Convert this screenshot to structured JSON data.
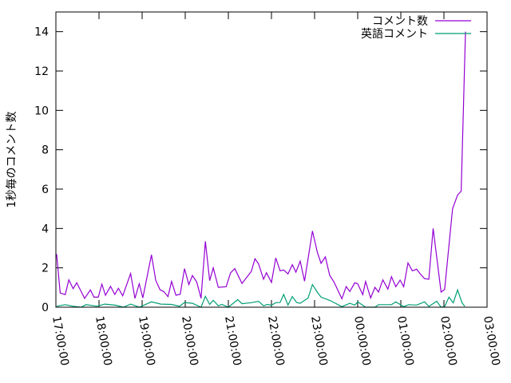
{
  "chart_data": {
    "type": "line",
    "title": "",
    "xlabel": "",
    "ylabel": "1秒毎のコメント数",
    "xlim": [
      "17:00:00",
      "03:00:00"
    ],
    "ylim": [
      0,
      15
    ],
    "x_ticks": [
      "17:00:00",
      "18:00:00",
      "19:00:00",
      "20:00:00",
      "21:00:00",
      "22:00:00",
      "23:00:00",
      "00:00:00",
      "01:00:00",
      "02:00:00",
      "03:00:00"
    ],
    "y_ticks": [
      0,
      2,
      4,
      6,
      8,
      10,
      12,
      14
    ],
    "grid": false,
    "legend_position": "top-right",
    "series": [
      {
        "name": "コメント数",
        "color": "#9400d3",
        "points": [
          [
            "17:01",
            2.7
          ],
          [
            "17:06",
            0.72
          ],
          [
            "17:13",
            0.64
          ],
          [
            "17:18",
            1.39
          ],
          [
            "17:24",
            0.94
          ],
          [
            "17:29",
            1.24
          ],
          [
            "17:35",
            0.81
          ],
          [
            "17:40",
            0.45
          ],
          [
            "17:48",
            0.88
          ],
          [
            "17:53",
            0.51
          ],
          [
            "17:59",
            0.51
          ],
          [
            "18:04",
            1.17
          ],
          [
            "18:09",
            0.61
          ],
          [
            "18:16",
            1.06
          ],
          [
            "18:22",
            0.65
          ],
          [
            "18:27",
            0.96
          ],
          [
            "18:33",
            0.58
          ],
          [
            "18:44",
            1.71
          ],
          [
            "18:50",
            0.45
          ],
          [
            "18:56",
            1.19
          ],
          [
            "19:01",
            0.47
          ],
          [
            "19:13",
            2.66
          ],
          [
            "19:19",
            1.36
          ],
          [
            "19:25",
            0.88
          ],
          [
            "19:30",
            0.8
          ],
          [
            "19:36",
            0.54
          ],
          [
            "19:41",
            1.31
          ],
          [
            "19:47",
            0.61
          ],
          [
            "19:53",
            0.66
          ],
          [
            "19:59",
            1.96
          ],
          [
            "20:05",
            1.15
          ],
          [
            "20:10",
            1.61
          ],
          [
            "20:16",
            1.28
          ],
          [
            "20:22",
            0.45
          ],
          [
            "20:28",
            3.35
          ],
          [
            "20:34",
            1.35
          ],
          [
            "20:39",
            2.0
          ],
          [
            "20:46",
            1.01
          ],
          [
            "20:57",
            1.04
          ],
          [
            "21:03",
            1.74
          ],
          [
            "21:09",
            1.96
          ],
          [
            "21:19",
            1.21
          ],
          [
            "21:32",
            1.82
          ],
          [
            "21:37",
            2.46
          ],
          [
            "21:42",
            2.2
          ],
          [
            "21:49",
            1.42
          ],
          [
            "21:53",
            1.75
          ],
          [
            "22:00",
            1.26
          ],
          [
            "22:06",
            2.5
          ],
          [
            "22:12",
            1.85
          ],
          [
            "22:17",
            1.89
          ],
          [
            "22:23",
            1.69
          ],
          [
            "22:29",
            2.16
          ],
          [
            "22:34",
            1.78
          ],
          [
            "22:40",
            2.34
          ],
          [
            "22:46",
            1.32
          ],
          [
            "22:57",
            3.87
          ],
          [
            "23:04",
            2.77
          ],
          [
            "23:09",
            2.23
          ],
          [
            "23:15",
            2.56
          ],
          [
            "23:21",
            1.62
          ],
          [
            "23:27",
            1.28
          ],
          [
            "23:38",
            0.43
          ],
          [
            "23:44",
            1.05
          ],
          [
            "23:49",
            0.8
          ],
          [
            "23:56",
            1.24
          ],
          [
            "00:00",
            1.19
          ],
          [
            "00:07",
            0.64
          ],
          [
            "00:11",
            1.31
          ],
          [
            "00:18",
            0.47
          ],
          [
            "00:24",
            1.01
          ],
          [
            "00:29",
            0.77
          ],
          [
            "00:35",
            1.39
          ],
          [
            "00:42",
            0.92
          ],
          [
            "00:47",
            1.55
          ],
          [
            "00:53",
            1.04
          ],
          [
            "00:59",
            1.38
          ],
          [
            "01:04",
            1.04
          ],
          [
            "01:10",
            2.25
          ],
          [
            "01:16",
            1.85
          ],
          [
            "01:22",
            1.93
          ],
          [
            "01:27",
            1.69
          ],
          [
            "01:33",
            1.45
          ],
          [
            "01:39",
            1.42
          ],
          [
            "01:45",
            4.0
          ],
          [
            "01:56",
            0.77
          ],
          [
            "02:01",
            0.9
          ],
          [
            "02:12",
            5.0
          ],
          [
            "02:19",
            5.7
          ],
          [
            "02:24",
            5.9
          ],
          [
            "02:30",
            14.0
          ]
        ]
      },
      {
        "name": "英語コメント",
        "color": "#009e73",
        "points": [
          [
            "17:01",
            0.05
          ],
          [
            "17:13",
            0.13
          ],
          [
            "17:24",
            0.05
          ],
          [
            "17:35",
            0.0
          ],
          [
            "17:42",
            0.13
          ],
          [
            "17:57",
            0.05
          ],
          [
            "18:08",
            0.16
          ],
          [
            "18:23",
            0.1
          ],
          [
            "18:34",
            0.0
          ],
          [
            "18:44",
            0.16
          ],
          [
            "18:56",
            0.0
          ],
          [
            "19:13",
            0.27
          ],
          [
            "19:26",
            0.16
          ],
          [
            "19:41",
            0.14
          ],
          [
            "19:52",
            0.05
          ],
          [
            "19:59",
            0.24
          ],
          [
            "20:10",
            0.2
          ],
          [
            "20:22",
            0.0
          ],
          [
            "20:28",
            0.55
          ],
          [
            "20:34",
            0.14
          ],
          [
            "20:39",
            0.35
          ],
          [
            "20:46",
            0.07
          ],
          [
            "20:51",
            0.14
          ],
          [
            "21:00",
            0.0
          ],
          [
            "21:13",
            0.38
          ],
          [
            "21:19",
            0.18
          ],
          [
            "21:32",
            0.23
          ],
          [
            "21:42",
            0.3
          ],
          [
            "21:49",
            0.07
          ],
          [
            "21:54",
            0.14
          ],
          [
            "22:00",
            0.1
          ],
          [
            "22:06",
            0.23
          ],
          [
            "22:12",
            0.24
          ],
          [
            "22:17",
            0.65
          ],
          [
            "22:23",
            0.11
          ],
          [
            "22:29",
            0.54
          ],
          [
            "22:35",
            0.24
          ],
          [
            "22:40",
            0.2
          ],
          [
            "22:51",
            0.47
          ],
          [
            "22:57",
            1.15
          ],
          [
            "23:04",
            0.75
          ],
          [
            "23:09",
            0.51
          ],
          [
            "23:21",
            0.35
          ],
          [
            "23:38",
            0.03
          ],
          [
            "23:49",
            0.2
          ],
          [
            "23:56",
            0.11
          ],
          [
            "00:00",
            0.27
          ],
          [
            "00:11",
            0.0
          ],
          [
            "00:24",
            0.0
          ],
          [
            "00:29",
            0.13
          ],
          [
            "00:47",
            0.13
          ],
          [
            "00:53",
            0.27
          ],
          [
            "01:04",
            0.03
          ],
          [
            "01:11",
            0.13
          ],
          [
            "01:22",
            0.11
          ],
          [
            "01:33",
            0.27
          ],
          [
            "01:39",
            0.04
          ],
          [
            "01:50",
            0.3
          ],
          [
            "01:56",
            0.0
          ],
          [
            "02:01",
            0.03
          ],
          [
            "02:07",
            0.51
          ],
          [
            "02:13",
            0.22
          ],
          [
            "02:19",
            0.88
          ],
          [
            "02:25",
            0.24
          ],
          [
            "02:29",
            0.04
          ]
        ]
      }
    ]
  }
}
